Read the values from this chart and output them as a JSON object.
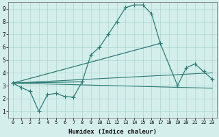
{
  "background_color": "#d4eeec",
  "grid_color": "#aed6d2",
  "line_color": "#2a7a72",
  "xlabel": "Humidex (Indice chaleur)",
  "xlim": [
    -0.5,
    23.5
  ],
  "ylim": [
    0.5,
    9.5
  ],
  "yticks": [
    1,
    2,
    3,
    4,
    5,
    6,
    7,
    8,
    9
  ],
  "xticks": [
    0,
    1,
    2,
    3,
    4,
    5,
    6,
    7,
    8,
    9,
    10,
    11,
    12,
    13,
    14,
    15,
    16,
    17,
    18,
    19,
    20,
    21,
    22,
    23
  ],
  "curve1_x": [
    0,
    1,
    2,
    3,
    4,
    5,
    6,
    7,
    8
  ],
  "curve1_y": [
    3.2,
    2.85,
    2.55,
    1.0,
    2.3,
    2.4,
    2.15,
    2.1,
    3.3
  ],
  "curve2_x": [
    0,
    8,
    9,
    10,
    11,
    12,
    13,
    14,
    15,
    16,
    17
  ],
  "curve2_y": [
    3.2,
    3.3,
    5.4,
    6.0,
    7.0,
    8.0,
    9.1,
    9.3,
    9.3,
    8.6,
    6.3
  ],
  "curve3_x": [
    0,
    17,
    19,
    20,
    21,
    22,
    23
  ],
  "curve3_y": [
    3.2,
    6.3,
    3.0,
    4.4,
    4.7,
    4.1,
    3.5
  ],
  "line1_x": [
    0,
    23
  ],
  "line1_y": [
    3.2,
    4.0
  ],
  "line2_x": [
    0,
    23
  ],
  "line2_y": [
    3.2,
    2.8
  ]
}
